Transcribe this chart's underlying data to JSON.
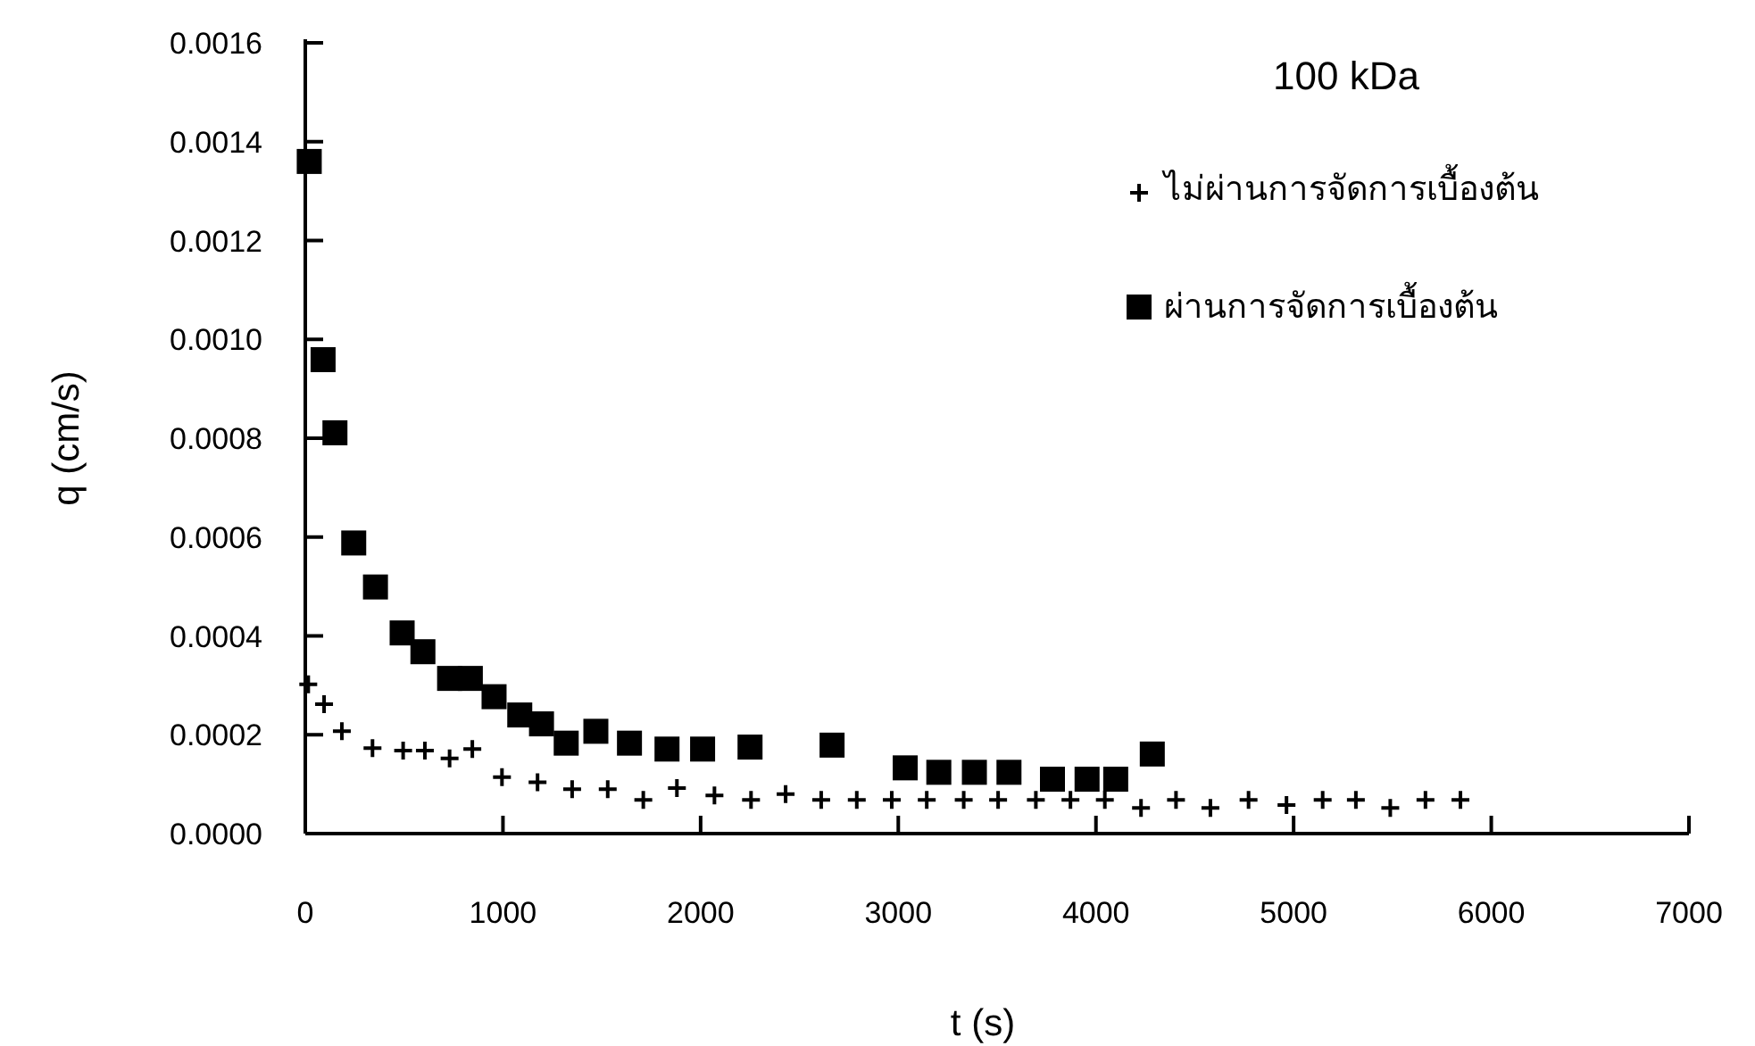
{
  "chart_data": {
    "type": "scatter",
    "title": "100 kDa",
    "xlabel": "t (s)",
    "ylabel": "q (cm/s)",
    "xlim": [
      0,
      7000
    ],
    "xticks": [
      0,
      1000,
      2000,
      3000,
      4000,
      5000,
      6000,
      7000
    ],
    "ylim": [
      0,
      0.0016
    ],
    "yticks": [
      {
        "value": 0,
        "label": "0.0000"
      },
      {
        "value": 0.0002,
        "label": "0.0002"
      },
      {
        "value": 0.0004,
        "label": "0.0004"
      },
      {
        "value": 0.0006,
        "label": "0.0006"
      },
      {
        "value": 0.0008,
        "label": "0.0008"
      },
      {
        "value": 0.001,
        "label": "0.0010"
      },
      {
        "value": 0.0012,
        "label": "0.0012"
      },
      {
        "value": 0.0014,
        "label": "0.0014"
      },
      {
        "value": 0.0016,
        "label": "0.0016"
      }
    ],
    "grid": false,
    "legend": "top right",
    "series": [
      {
        "name": "ไม่ผ่านการจัดการเบื้องต้น",
        "color": "#000000",
        "marker": "cross",
        "x": [
          15,
          95,
          185,
          340,
          495,
          605,
          730,
          845,
          995,
          1175,
          1350,
          1530,
          1710,
          1880,
          2070,
          2255,
          2430,
          2610,
          2790,
          2967,
          3144,
          3331,
          3505,
          3696,
          3871,
          4045,
          4228,
          4405,
          4579,
          4772,
          4964,
          5147,
          5315,
          5489,
          5667,
          5844
        ],
        "values": [
          0.000302,
          0.000262,
          0.000207,
          0.000173,
          0.000168,
          0.000168,
          0.000152,
          0.000171,
          0.000114,
          0.000104,
          9e-05,
          9e-05,
          6.8e-05,
          9.2e-05,
          7.7e-05,
          6.8e-05,
          8e-05,
          6.8e-05,
          6.8e-05,
          6.8e-05,
          6.8e-05,
          6.8e-05,
          6.8e-05,
          6.8e-05,
          6.8e-05,
          6.8e-05,
          5.2e-05,
          6.8e-05,
          5.2e-05,
          6.8e-05,
          5.8e-05,
          6.8e-05,
          6.8e-05,
          5.2e-05,
          6.8e-05,
          6.8e-05
        ]
      },
      {
        "name": "ผ่านการจัดการเบื้องต้น",
        "color": "#000000",
        "marker": "square",
        "x": [
          20,
          90,
          150,
          245,
          355,
          490,
          595,
          730,
          835,
          955,
          1085,
          1195,
          1320,
          1470,
          1640,
          1830,
          2010,
          2250,
          2665,
          3035,
          3205,
          3385,
          3560,
          3780,
          3955,
          4100,
          4285
        ],
        "values": [
          0.00136,
          0.000959,
          0.000811,
          0.000588,
          0.000499,
          0.000406,
          0.000368,
          0.000314,
          0.000314,
          0.000277,
          0.00024,
          0.000222,
          0.000183,
          0.000207,
          0.000183,
          0.000171,
          0.000171,
          0.000175,
          0.000179,
          0.000133,
          0.000124,
          0.000124,
          0.000124,
          0.00011,
          0.00011,
          0.00011,
          0.000161
        ]
      }
    ]
  }
}
